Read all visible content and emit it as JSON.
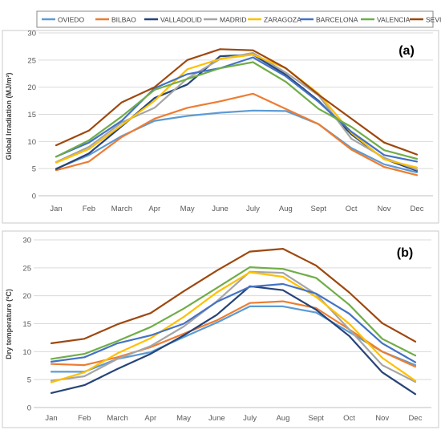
{
  "legend": {
    "entries": [
      {
        "name": "OVIEDO",
        "color": "#5B9BD5"
      },
      {
        "name": "BILBAO",
        "color": "#ED7D31"
      },
      {
        "name": "VALLADOLID",
        "color": "#264478"
      },
      {
        "name": "MADRID",
        "color": "#A5A5A5"
      },
      {
        "name": "ZARAGOZA",
        "color": "#FFC000"
      },
      {
        "name": "BARCELONA",
        "color": "#4472C4"
      },
      {
        "name": "VALENCIA",
        "color": "#70AD47"
      },
      {
        "name": "SEVILLE",
        "color": "#9E480E"
      }
    ]
  },
  "chart_data": [
    {
      "type": "line",
      "panel_label": "(a)",
      "ylabel": "Global Irradiation (MJ/m²)",
      "xlabel": "",
      "categories": [
        "Jan",
        "Feb",
        "March",
        "Apr",
        "May",
        "June",
        "July",
        "Aug",
        "Sept",
        "Oct",
        "Nov",
        "Dec"
      ],
      "ylim": [
        0,
        30
      ],
      "yticks": [
        0,
        5,
        10,
        15,
        20,
        25,
        30
      ],
      "grid": true,
      "legend_position": "top",
      "series": [
        {
          "name": "OVIEDO",
          "color": "#5B9BD5",
          "values": [
            5.0,
            7.5,
            11.0,
            13.8,
            14.7,
            15.3,
            15.7,
            15.6,
            13.2,
            8.8,
            5.8,
            4.3
          ]
        },
        {
          "name": "BILBAO",
          "color": "#ED7D31",
          "values": [
            4.7,
            6.3,
            10.8,
            14.2,
            16.2,
            17.4,
            18.8,
            16.0,
            13.2,
            8.5,
            5.3,
            3.8
          ]
        },
        {
          "name": "VALLADOLID",
          "color": "#264478",
          "values": [
            4.9,
            7.8,
            12.8,
            18.0,
            20.5,
            25.7,
            26.0,
            22.3,
            17.5,
            11.3,
            6.8,
            4.6
          ]
        },
        {
          "name": "MADRID",
          "color": "#A5A5A5",
          "values": [
            6.2,
            9.0,
            13.5,
            16.2,
            21.6,
            25.2,
            26.3,
            22.7,
            18.5,
            10.5,
            7.0,
            4.8
          ]
        },
        {
          "name": "ZARAGOZA",
          "color": "#FFC000",
          "values": [
            6.1,
            8.6,
            13.0,
            17.5,
            23.3,
            25.2,
            26.0,
            23.5,
            18.8,
            11.6,
            6.7,
            5.2
          ]
        },
        {
          "name": "BARCELONA",
          "color": "#4472C4",
          "values": [
            7.2,
            9.8,
            13.8,
            19.8,
            22.4,
            23.5,
            25.5,
            22.0,
            17.3,
            11.8,
            7.5,
            6.3
          ]
        },
        {
          "name": "VALENCIA",
          "color": "#70AD47",
          "values": [
            7.2,
            10.2,
            14.6,
            19.5,
            21.5,
            23.5,
            24.6,
            21.0,
            16.0,
            12.7,
            8.4,
            6.8
          ]
        },
        {
          "name": "SEVILLE",
          "color": "#9E480E",
          "values": [
            9.3,
            12.0,
            17.2,
            20.0,
            25.0,
            27.0,
            26.8,
            23.5,
            18.6,
            14.2,
            9.8,
            7.6
          ]
        }
      ]
    },
    {
      "type": "line",
      "panel_label": "(b)",
      "ylabel": "Dry temperature (ºC)",
      "xlabel": "",
      "categories": [
        "Jan",
        "Feb",
        "March",
        "Apr",
        "May",
        "June",
        "July",
        "Aug",
        "Sept",
        "Oct",
        "Nov",
        "Dec"
      ],
      "ylim": [
        0,
        30
      ],
      "yticks": [
        0,
        5,
        10,
        15,
        20,
        25,
        30
      ],
      "grid": true,
      "legend_position": "top",
      "series": [
        {
          "name": "OVIEDO",
          "color": "#5B9BD5",
          "values": [
            6.4,
            6.4,
            8.7,
            9.9,
            12.6,
            15.2,
            18.1,
            18.1,
            17.0,
            13.5,
            10.0,
            7.6
          ]
        },
        {
          "name": "BILBAO",
          "color": "#ED7D31",
          "values": [
            7.8,
            7.6,
            9.0,
            10.8,
            13.2,
            15.6,
            18.7,
            19.0,
            17.8,
            14.0,
            10.0,
            7.3
          ]
        },
        {
          "name": "VALLADOLID",
          "color": "#264478",
          "values": [
            2.6,
            4.0,
            6.9,
            9.6,
            12.9,
            16.6,
            21.7,
            21.0,
            17.5,
            12.8,
            6.3,
            2.4
          ]
        },
        {
          "name": "MADRID",
          "color": "#A5A5A5",
          "values": [
            4.8,
            5.6,
            8.7,
            11.0,
            14.5,
            19.0,
            24.3,
            24.1,
            20.3,
            14.0,
            7.6,
            4.6
          ]
        },
        {
          "name": "ZARAGOZA",
          "color": "#FFC000",
          "values": [
            4.5,
            6.3,
            9.7,
            12.4,
            16.2,
            20.6,
            24.2,
            23.4,
            19.8,
            15.0,
            8.9,
            4.8
          ]
        },
        {
          "name": "BARCELONA",
          "color": "#4472C4",
          "values": [
            8.2,
            9.0,
            11.5,
            12.9,
            15.0,
            18.9,
            21.6,
            22.1,
            20.4,
            16.8,
            11.5,
            8.1
          ]
        },
        {
          "name": "VALENCIA",
          "color": "#70AD47",
          "values": [
            8.7,
            9.6,
            11.9,
            14.4,
            17.7,
            21.4,
            25.1,
            24.8,
            23.2,
            18.4,
            12.3,
            9.3
          ]
        },
        {
          "name": "SEVILLE",
          "color": "#9E480E",
          "values": [
            11.5,
            12.3,
            14.9,
            16.9,
            20.8,
            24.5,
            27.9,
            28.4,
            25.4,
            20.6,
            15.1,
            11.8
          ]
        }
      ]
    }
  ]
}
